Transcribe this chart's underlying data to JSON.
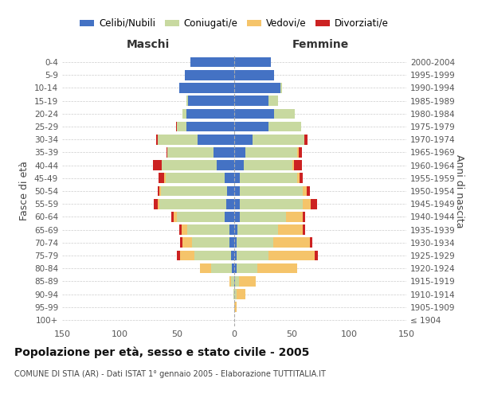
{
  "age_groups": [
    "100+",
    "95-99",
    "90-94",
    "85-89",
    "80-84",
    "75-79",
    "70-74",
    "65-69",
    "60-64",
    "55-59",
    "50-54",
    "45-49",
    "40-44",
    "35-39",
    "30-34",
    "25-29",
    "20-24",
    "15-19",
    "10-14",
    "5-9",
    "0-4"
  ],
  "birth_years": [
    "≤ 1904",
    "1905-1909",
    "1910-1914",
    "1915-1919",
    "1920-1924",
    "1925-1929",
    "1930-1934",
    "1935-1939",
    "1940-1944",
    "1945-1949",
    "1950-1954",
    "1955-1959",
    "1960-1964",
    "1965-1969",
    "1970-1974",
    "1975-1979",
    "1980-1984",
    "1985-1989",
    "1990-1994",
    "1995-1999",
    "2000-2004"
  ],
  "maschi": {
    "celibi": [
      0,
      0,
      0,
      0,
      2,
      3,
      4,
      4,
      8,
      7,
      6,
      8,
      15,
      18,
      32,
      42,
      42,
      40,
      48,
      43,
      38
    ],
    "coniugati": [
      0,
      0,
      1,
      3,
      18,
      32,
      33,
      37,
      42,
      58,
      58,
      52,
      48,
      40,
      35,
      8,
      3,
      2,
      0,
      0,
      0
    ],
    "vedovi": [
      0,
      0,
      0,
      1,
      10,
      12,
      8,
      5,
      3,
      2,
      1,
      1,
      0,
      0,
      0,
      0,
      0,
      0,
      0,
      0,
      0
    ],
    "divorziati": [
      0,
      0,
      0,
      0,
      0,
      3,
      2,
      2,
      2,
      3,
      2,
      5,
      8,
      1,
      1,
      1,
      0,
      0,
      0,
      0,
      0
    ]
  },
  "femmine": {
    "nubili": [
      0,
      0,
      0,
      1,
      2,
      2,
      2,
      3,
      5,
      5,
      5,
      5,
      8,
      10,
      16,
      30,
      35,
      30,
      40,
      35,
      32
    ],
    "coniugate": [
      0,
      0,
      2,
      3,
      18,
      28,
      32,
      35,
      40,
      55,
      55,
      50,
      43,
      45,
      45,
      28,
      18,
      8,
      2,
      0,
      0
    ],
    "vedove": [
      0,
      2,
      8,
      15,
      35,
      40,
      32,
      22,
      15,
      7,
      3,
      2,
      1,
      1,
      0,
      0,
      0,
      0,
      0,
      0,
      0
    ],
    "divorziate": [
      0,
      0,
      0,
      0,
      0,
      3,
      2,
      2,
      2,
      5,
      3,
      3,
      7,
      3,
      3,
      0,
      0,
      0,
      0,
      0,
      0
    ]
  },
  "colors": {
    "celibi": "#4472C4",
    "coniugati": "#C8D9A0",
    "vedovi": "#F5C46A",
    "divorziati": "#CC2222"
  },
  "xlim": 150,
  "title": "Popolazione per età, sesso e stato civile - 2005",
  "subtitle": "COMUNE DI STIA (AR) - Dati ISTAT 1° gennaio 2005 - Elaborazione TUTTITALIA.IT",
  "ylabel_left": "Fasce di età",
  "ylabel_right": "Anni di nascita",
  "xlabel_maschi": "Maschi",
  "xlabel_femmine": "Femmine",
  "legend_labels": [
    "Celibi/Nubili",
    "Coniugati/e",
    "Vedovi/e",
    "Divorziati/e"
  ],
  "background_color": "#ffffff",
  "grid_color": "#cccccc"
}
